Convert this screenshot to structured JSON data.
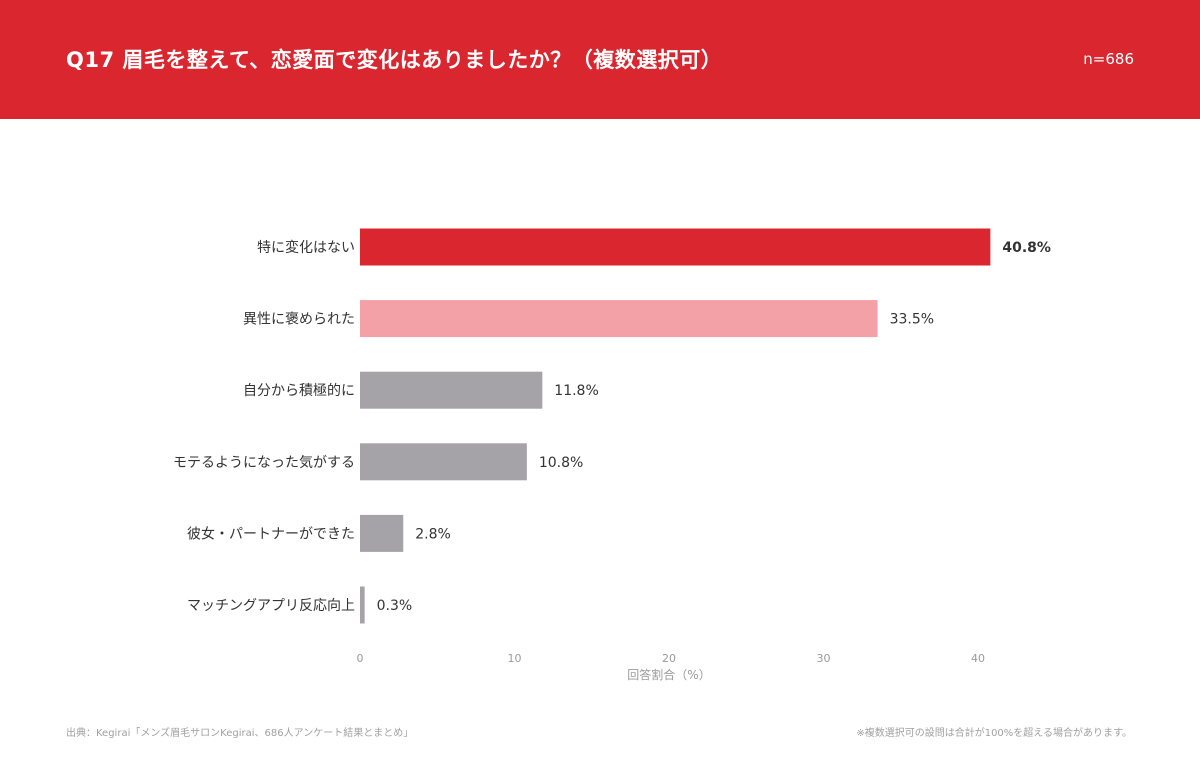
{
  "header": {
    "title": "Q17 眉毛を整えて、恋愛面で変化はありましたか？（複数選択可）",
    "sample_size": "n=686"
  },
  "chart_data": {
    "type": "bar",
    "orientation": "horizontal",
    "categories": [
      "特に変化はない",
      "異性に褒められた",
      "自分から積極的に",
      "モテるようになった気がする",
      "彼女・パートナーができた",
      "マッチングアプリ反応向上"
    ],
    "values": [
      40.8,
      33.5,
      11.8,
      10.8,
      2.8,
      0.3
    ],
    "value_labels": [
      "40.8%",
      "33.5%",
      "11.8%",
      "10.8%",
      "2.8%",
      "0.3%"
    ],
    "colors": [
      "#d9262f",
      "#f3a0a6",
      "#a6a3a8",
      "#a6a3a8",
      "#a6a3a8",
      "#a6a3a8"
    ],
    "xlabel": "回答割合（%）",
    "xlim": [
      0,
      40
    ],
    "xticks": [
      0,
      10,
      20,
      30,
      40
    ],
    "grid": false
  },
  "footer": {
    "source": "出典：Kegirai「メンズ眉毛サロンKegirai、686人アンケート結果とまとめ」",
    "note": "※複数選択可の設問は合計が100%を超える場合があります。"
  }
}
